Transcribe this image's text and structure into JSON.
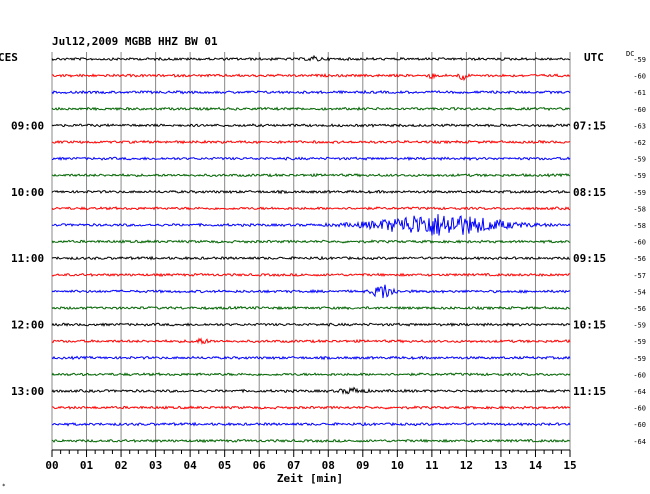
{
  "header": {
    "title": "Jul12,2009   MGBB HHZ BW 01",
    "left_tz": "CES",
    "right_tz": "UTC",
    "dc_label": "DC"
  },
  "chart_data": {
    "type": "line",
    "title": "Jul12,2009   MGBB HHZ BW 01",
    "xlabel": "Zeit [min]",
    "ylabel": "",
    "xlim": [
      0,
      15
    ],
    "x_ticks": [
      "00",
      "01",
      "02",
      "03",
      "04",
      "05",
      "06",
      "07",
      "08",
      "09",
      "10",
      "11",
      "12",
      "13",
      "14",
      "15"
    ],
    "grid": true,
    "rows_per_hour": 4,
    "trace_colors": [
      "#000000",
      "#ff0000",
      "#0000ff",
      "#006400"
    ],
    "left_time_labels": [
      {
        "row": 4,
        "label": "09:00"
      },
      {
        "row": 8,
        "label": "10:00"
      },
      {
        "row": 12,
        "label": "11:00"
      },
      {
        "row": 16,
        "label": "12:00"
      },
      {
        "row": 20,
        "label": "13:00"
      }
    ],
    "right_time_labels": [
      {
        "row": 4,
        "label": "07:15"
      },
      {
        "row": 8,
        "label": "08:15"
      },
      {
        "row": 12,
        "label": "09:15"
      },
      {
        "row": 16,
        "label": "10:15"
      },
      {
        "row": 20,
        "label": "11:15"
      }
    ],
    "dc_offsets": [
      -59,
      -60,
      -61,
      -60,
      -63,
      -62,
      -59,
      -59,
      -59,
      -58,
      -58,
      -60,
      -56,
      -57,
      -54,
      -56,
      -59,
      -59,
      -59,
      -60,
      -64,
      -60,
      -60,
      -64
    ],
    "events": [
      {
        "row": 0,
        "minute": 7.6,
        "duration": 0.5,
        "amplitude": 2
      },
      {
        "row": 1,
        "minute": 11.0,
        "duration": 0.15,
        "amplitude": 4
      },
      {
        "row": 1,
        "minute": 11.9,
        "duration": 0.25,
        "amplitude": 5
      },
      {
        "row": 10,
        "minute": 11.2,
        "duration": 4.2,
        "amplitude": 11
      },
      {
        "row": 14,
        "minute": 9.6,
        "duration": 0.7,
        "amplitude": 7
      },
      {
        "row": 17,
        "minute": 4.3,
        "duration": 0.6,
        "amplitude": 2
      },
      {
        "row": 20,
        "minute": 8.7,
        "duration": 0.8,
        "amplitude": 2.5
      }
    ]
  }
}
